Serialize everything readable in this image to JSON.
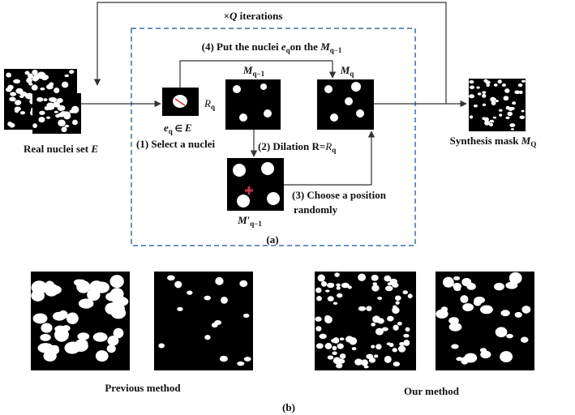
{
  "panel_a": {
    "loop_label": [
      "×",
      "Q",
      " iterations"
    ],
    "step4": [
      "(4) Put the nuclei ",
      "e",
      "q",
      "on the ",
      "M",
      "q−1"
    ],
    "real_set": [
      "Real nuclei set ",
      "E"
    ],
    "radius": [
      "R",
      "q"
    ],
    "element": [
      "e",
      "q",
      " ∈ ",
      "E"
    ],
    "step1": "(1) Select a nuclei",
    "mask_prev": [
      "M",
      "q−1"
    ],
    "mask_cur": [
      "M",
      "q"
    ],
    "step2": [
      "(2) Dilation  R=",
      "R",
      "q"
    ],
    "mask_dilated": [
      "M′",
      "q−1"
    ],
    "step3": [
      "(3) Choose a position",
      "randomly"
    ],
    "synthesis": [
      "Synthesis mask ",
      "M",
      "Q"
    ],
    "caption": "(a)"
  },
  "panel_b": {
    "previous": "Previous method",
    "ours": "Our method",
    "caption": "(b)"
  }
}
